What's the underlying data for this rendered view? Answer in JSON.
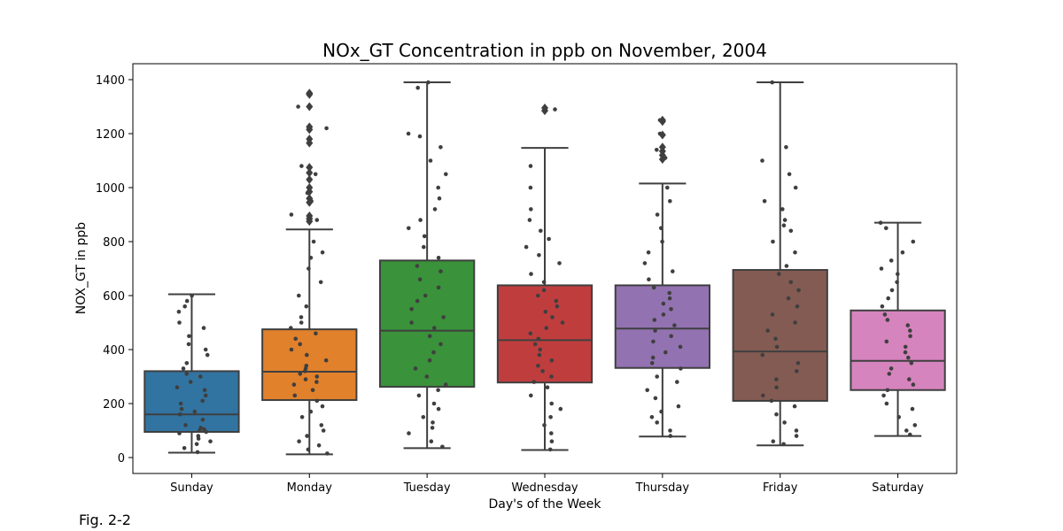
{
  "figure_caption": "Fig. 2-2",
  "chart_data": {
    "type": "box",
    "title": "NOx_GT Concentration in ppb on November, 2004",
    "xlabel": "Day's of the Week",
    "ylabel": "NOX_GT in ppb",
    "ylim": [
      -60,
      1460
    ],
    "yticks": [
      0,
      200,
      400,
      600,
      800,
      1000,
      1200,
      1400
    ],
    "grid": false,
    "overlay": "strip points (jittered observations)",
    "categories": [
      "Sunday",
      "Monday",
      "Tuesday",
      "Wednesday",
      "Thursday",
      "Friday",
      "Saturday"
    ],
    "colors": [
      "#3274a1",
      "#e1812c",
      "#3a923a",
      "#c03d3e",
      "#9372b2",
      "#845b53",
      "#d684bd"
    ],
    "boxes": [
      {
        "name": "Sunday",
        "whislo": 18,
        "q1": 95,
        "med": 160,
        "q3": 320,
        "whishi": 605,
        "fliers": []
      },
      {
        "name": "Monday",
        "whislo": 12,
        "q1": 213,
        "med": 318,
        "q3": 475,
        "whishi": 845,
        "fliers": [
          875,
          885,
          895,
          945,
          960,
          985,
          1000,
          1030,
          1055,
          1075,
          1165,
          1180,
          1215,
          1225,
          1300,
          1345,
          1350
        ]
      },
      {
        "name": "Tuesday",
        "whislo": 35,
        "q1": 262,
        "med": 470,
        "q3": 730,
        "whishi": 1390,
        "fliers": []
      },
      {
        "name": "Wednesday",
        "whislo": 28,
        "q1": 278,
        "med": 435,
        "q3": 638,
        "whishi": 1147,
        "fliers": [
          1285,
          1295
        ]
      },
      {
        "name": "Thursday",
        "whislo": 78,
        "q1": 332,
        "med": 478,
        "q3": 638,
        "whishi": 1015,
        "fliers": [
          1105,
          1120,
          1135,
          1150,
          1195,
          1245,
          1250
        ]
      },
      {
        "name": "Friday",
        "whislo": 45,
        "q1": 210,
        "med": 393,
        "q3": 695,
        "whishi": 1390,
        "fliers": []
      },
      {
        "name": "Saturday",
        "whislo": 80,
        "q1": 250,
        "med": 358,
        "q3": 545,
        "whishi": 870,
        "fliers": []
      }
    ],
    "points": [
      [
        20,
        35,
        50,
        60,
        70,
        80,
        90,
        95,
        100,
        105,
        110,
        120,
        140,
        160,
        170,
        180,
        200,
        210,
        230,
        250,
        260,
        280,
        300,
        310,
        330,
        350,
        380,
        400,
        420,
        450,
        480,
        500,
        540,
        560,
        580,
        600
      ],
      [
        15,
        30,
        45,
        60,
        80,
        100,
        120,
        150,
        170,
        190,
        210,
        230,
        250,
        270,
        280,
        290,
        300,
        310,
        320,
        330,
        340,
        360,
        380,
        400,
        420,
        440,
        460,
        480,
        500,
        520,
        560,
        600,
        650,
        700,
        740,
        760,
        800,
        880,
        900,
        950,
        980,
        1000,
        1050,
        1080,
        1170,
        1220,
        1300,
        1350
      ],
      [
        40,
        60,
        90,
        110,
        130,
        150,
        180,
        200,
        230,
        250,
        270,
        300,
        330,
        360,
        390,
        420,
        450,
        480,
        500,
        520,
        550,
        580,
        600,
        630,
        660,
        690,
        710,
        740,
        780,
        820,
        850,
        880,
        920,
        960,
        1000,
        1050,
        1100,
        1150,
        1190,
        1200,
        1370,
        1390
      ],
      [
        30,
        60,
        90,
        120,
        150,
        180,
        200,
        230,
        260,
        280,
        300,
        320,
        340,
        360,
        380,
        400,
        420,
        440,
        460,
        480,
        500,
        520,
        540,
        560,
        580,
        600,
        620,
        650,
        680,
        720,
        750,
        780,
        810,
        840,
        880,
        920,
        1000,
        1080,
        1290
      ],
      [
        80,
        100,
        130,
        150,
        170,
        190,
        220,
        250,
        280,
        300,
        330,
        350,
        370,
        390,
        410,
        430,
        450,
        470,
        490,
        510,
        530,
        550,
        570,
        590,
        610,
        630,
        660,
        690,
        720,
        760,
        800,
        850,
        900,
        950,
        1000,
        1110,
        1140,
        1200,
        1250
      ],
      [
        50,
        60,
        80,
        100,
        130,
        160,
        190,
        210,
        230,
        260,
        290,
        320,
        350,
        380,
        410,
        440,
        470,
        500,
        530,
        560,
        590,
        620,
        650,
        680,
        710,
        760,
        800,
        840,
        860,
        880,
        920,
        950,
        1000,
        1050,
        1100,
        1150,
        1390
      ],
      [
        85,
        100,
        120,
        150,
        180,
        200,
        230,
        250,
        270,
        290,
        310,
        330,
        350,
        370,
        390,
        410,
        430,
        450,
        470,
        490,
        510,
        530,
        560,
        590,
        620,
        650,
        680,
        700,
        730,
        760,
        800,
        850,
        870
      ]
    ]
  }
}
